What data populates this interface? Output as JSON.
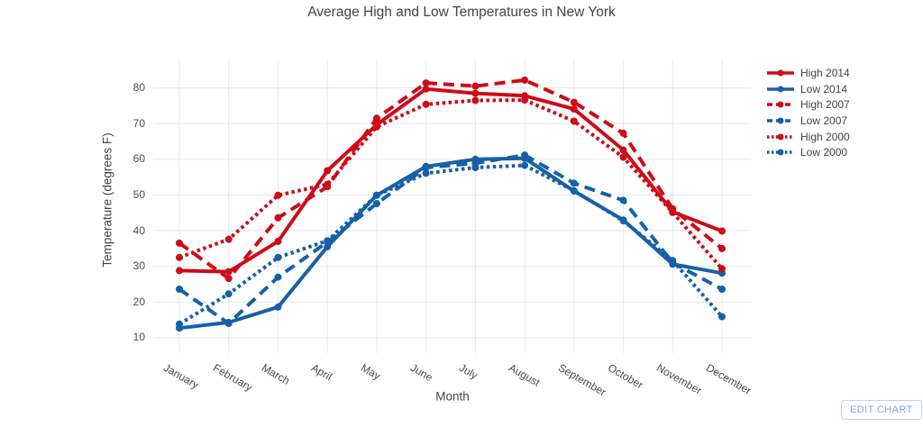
{
  "title": "Average High and Low Temperatures in New York",
  "x_axis": {
    "title": "Month"
  },
  "y_axis": {
    "title": "Temperature (degrees F)",
    "ticks": [
      10,
      20,
      30,
      40,
      50,
      60,
      70,
      80
    ]
  },
  "edit_button_label": "EDIT CHART",
  "colors": {
    "high_red": "#CD0C18",
    "low_blue": "#1660A7",
    "grid": "#e9e9eb",
    "text": "#444444",
    "edit_button_blue": "#8a9cf0"
  },
  "chart_data": {
    "type": "line",
    "title": "Average High and Low Temperatures in New York",
    "xlabel": "Month",
    "ylabel": "Temperature (degrees F)",
    "categories": [
      "January",
      "February",
      "March",
      "April",
      "May",
      "June",
      "July",
      "August",
      "September",
      "October",
      "November",
      "December"
    ],
    "ylim": [
      5,
      88
    ],
    "grid": true,
    "legend_position": "right",
    "mode": "lines+markers",
    "series": [
      {
        "name": "High 2014",
        "color": "#CD0C18",
        "dash": "solid",
        "values": [
          28.8,
          28.5,
          37.0,
          56.8,
          69.7,
          79.7,
          78.5,
          77.8,
          74.1,
          62.6,
          45.3,
          39.9
        ]
      },
      {
        "name": "Low 2014",
        "color": "#1660A7",
        "dash": "solid",
        "values": [
          12.7,
          14.3,
          18.6,
          35.5,
          49.9,
          58.0,
          60.0,
          60.3,
          51.1,
          43.0,
          30.6,
          28.1
        ]
      },
      {
        "name": "High 2007",
        "color": "#CD0C18",
        "dash": "dash",
        "values": [
          36.5,
          26.6,
          43.6,
          52.3,
          71.5,
          81.4,
          80.5,
          82.2,
          76.0,
          67.3,
          46.1,
          35.0
        ]
      },
      {
        "name": "Low 2007",
        "color": "#1660A7",
        "dash": "dash",
        "values": [
          23.6,
          14.0,
          27.0,
          36.8,
          47.6,
          57.7,
          58.9,
          61.2,
          53.3,
          48.5,
          31.0,
          23.6
        ]
      },
      {
        "name": "High 2000",
        "color": "#CD0C18",
        "dash": "dot",
        "values": [
          32.5,
          37.6,
          49.9,
          53.0,
          69.1,
          75.4,
          76.5,
          76.6,
          70.7,
          60.6,
          45.1,
          29.3
        ]
      },
      {
        "name": "Low 2000",
        "color": "#1660A7",
        "dash": "dot",
        "values": [
          13.8,
          22.3,
          32.5,
          37.2,
          49.9,
          56.1,
          57.7,
          58.3,
          51.2,
          42.8,
          31.6,
          15.9
        ]
      }
    ]
  }
}
